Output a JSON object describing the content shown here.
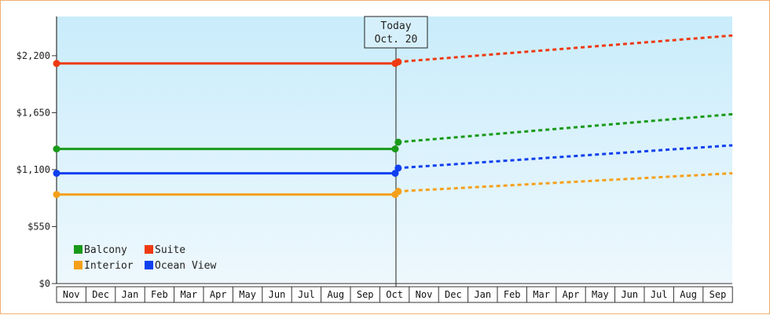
{
  "chart_data": {
    "type": "line",
    "title": "",
    "xlabel": "",
    "ylabel": "",
    "ylim": [
      0,
      2200
    ],
    "yticks": [
      0,
      550,
      1100,
      1650,
      2200
    ],
    "ytick_labels": [
      "$0",
      "$550",
      "$1,100",
      "$1,650",
      "$2,200"
    ],
    "months": [
      "Nov",
      "Dec",
      "Jan",
      "Feb",
      "Mar",
      "Apr",
      "May",
      "Jun",
      "Jul",
      "Aug",
      "Sep",
      "Oct",
      "Nov",
      "Dec",
      "Jan",
      "Feb",
      "Mar",
      "Apr",
      "May",
      "Jun",
      "Jul",
      "Aug",
      "Sep"
    ],
    "today_label": [
      "Today",
      "Oct. 20"
    ],
    "today_month_index": 11.55,
    "grid": false,
    "legend_position": "bottom-left",
    "series": [
      {
        "name": "Balcony",
        "color": "#1a9a1a",
        "history": [
          {
            "month": 0,
            "value": 1300
          },
          {
            "month": 11.55,
            "value": 1300
          }
        ],
        "forecast": [
          {
            "month": 11.6,
            "value": 1365
          },
          {
            "month": 23,
            "value": 1635
          }
        ]
      },
      {
        "name": "Suite",
        "color": "#ee3a12",
        "history": [
          {
            "month": 0,
            "value": 2125
          },
          {
            "month": 11.55,
            "value": 2125
          }
        ],
        "forecast": [
          {
            "month": 11.6,
            "value": 2140
          },
          {
            "month": 23,
            "value": 2395
          }
        ]
      },
      {
        "name": "Interior",
        "color": "#f5a01a",
        "history": [
          {
            "month": 0,
            "value": 860
          },
          {
            "month": 11.55,
            "value": 860
          }
        ],
        "forecast": [
          {
            "month": 11.6,
            "value": 890
          },
          {
            "month": 23,
            "value": 1065
          }
        ]
      },
      {
        "name": "Ocean View",
        "color": "#1040ee",
        "history": [
          {
            "month": 0,
            "value": 1065
          },
          {
            "month": 11.55,
            "value": 1065
          }
        ],
        "forecast": [
          {
            "month": 11.6,
            "value": 1115
          },
          {
            "month": 23,
            "value": 1335
          }
        ]
      }
    ]
  }
}
